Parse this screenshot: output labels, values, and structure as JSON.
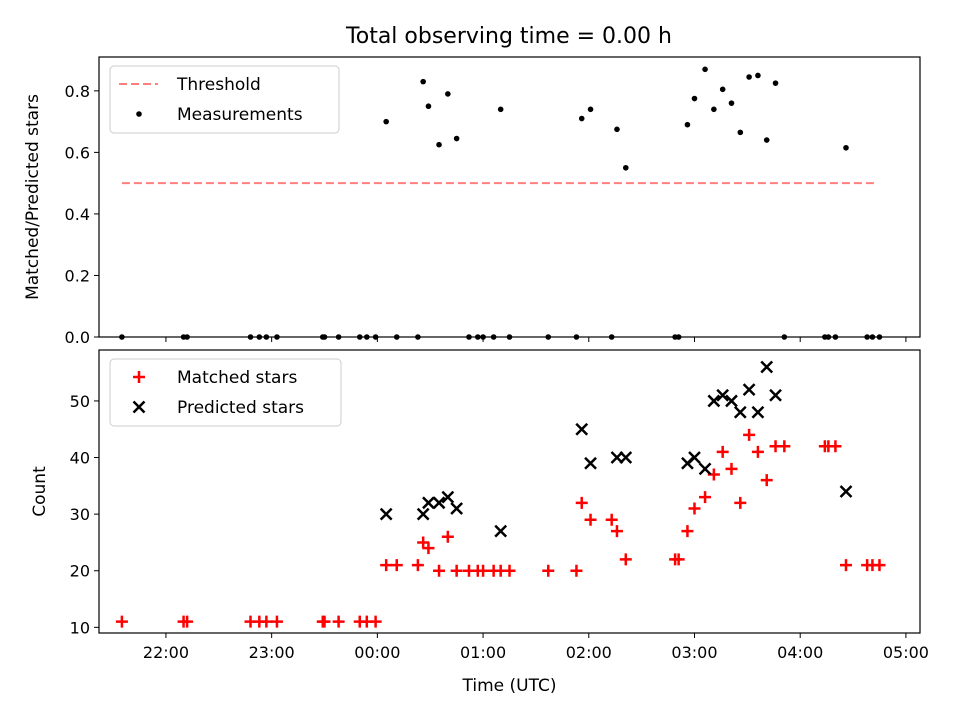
{
  "figure": {
    "title": "Total observing time = 0.00 h"
  },
  "colors": {
    "threshold": "#ff7f7f",
    "measurement": "#000000",
    "matched": "#ff0000",
    "predicted": "#000000"
  },
  "chart_data": [
    {
      "type": "scatter",
      "panel": "top",
      "title": "Total observing time = 0.00 h",
      "xlabel": "",
      "ylabel": "Matched/Predicted stars",
      "xlim": [
        "21:22",
        "05:08"
      ],
      "ylim": [
        0,
        0.91
      ],
      "yticks": [
        0.0,
        0.2,
        0.4,
        0.6,
        0.8
      ],
      "yticklabels": [
        "0.0",
        "0.2",
        "0.4",
        "0.6",
        "0.8"
      ],
      "grid": false,
      "legend": {
        "position": "top-left",
        "entries": [
          "Threshold",
          "Measurements"
        ]
      },
      "series": [
        {
          "name": "Threshold",
          "kind": "dashed-line",
          "x": [
            "21:35",
            "04:44"
          ],
          "y": [
            0.5,
            0.5
          ]
        },
        {
          "name": "Measurements",
          "kind": "dots",
          "points": [
            [
              "21:35",
              0
            ],
            [
              "22:10",
              0
            ],
            [
              "22:12",
              0
            ],
            [
              "22:48",
              0
            ],
            [
              "22:53",
              0
            ],
            [
              "22:57",
              0
            ],
            [
              "23:03",
              0
            ],
            [
              "23:29",
              0
            ],
            [
              "23:30",
              0
            ],
            [
              "23:38",
              0
            ],
            [
              "23:50",
              0
            ],
            [
              "23:54",
              0
            ],
            [
              "23:59",
              0
            ],
            [
              "00:05",
              0.7
            ],
            [
              "00:11",
              0
            ],
            [
              "00:23",
              0
            ],
            [
              "00:26",
              0.83
            ],
            [
              "00:29",
              0.75
            ],
            [
              "00:35",
              0.625
            ],
            [
              "00:40",
              0.79
            ],
            [
              "00:45",
              0.645
            ],
            [
              "00:52",
              0
            ],
            [
              "00:57",
              0
            ],
            [
              "01:00",
              0
            ],
            [
              "01:06",
              0
            ],
            [
              "01:10",
              0.74
            ],
            [
              "01:15",
              0
            ],
            [
              "01:37",
              0
            ],
            [
              "01:53",
              0
            ],
            [
              "01:56",
              0.71
            ],
            [
              "02:01",
              0.74
            ],
            [
              "02:13",
              0
            ],
            [
              "02:16",
              0.675
            ],
            [
              "02:21",
              0.55
            ],
            [
              "02:49",
              0
            ],
            [
              "02:51",
              0
            ],
            [
              "02:56",
              0.69
            ],
            [
              "03:00",
              0.775
            ],
            [
              "03:06",
              0.87
            ],
            [
              "03:11",
              0.74
            ],
            [
              "03:16",
              0.805
            ],
            [
              "03:21",
              0.76
            ],
            [
              "03:26",
              0.665
            ],
            [
              "03:31",
              0.845
            ],
            [
              "03:36",
              0.85
            ],
            [
              "03:41",
              0.64
            ],
            [
              "03:46",
              0.825
            ],
            [
              "03:51",
              0
            ],
            [
              "04:14",
              0
            ],
            [
              "04:16",
              0
            ],
            [
              "04:20",
              0
            ],
            [
              "04:26",
              0.615
            ],
            [
              "04:38",
              0
            ],
            [
              "04:41",
              0
            ],
            [
              "04:45",
              0
            ]
          ]
        }
      ]
    },
    {
      "type": "scatter",
      "panel": "bottom",
      "xlabel": "Time (UTC)",
      "ylabel": "Count",
      "xlim": [
        "21:22",
        "05:08"
      ],
      "ylim": [
        9,
        59
      ],
      "xticks": [
        "22:00",
        "23:00",
        "00:00",
        "01:00",
        "02:00",
        "03:00",
        "04:00",
        "05:00"
      ],
      "yticks": [
        10,
        20,
        30,
        40,
        50
      ],
      "grid": false,
      "legend": {
        "position": "top-left",
        "entries": [
          "Matched stars",
          "Predicted stars"
        ]
      },
      "series": [
        {
          "name": "Matched stars",
          "marker": "+",
          "points": [
            [
              "21:35",
              11
            ],
            [
              "22:10",
              11
            ],
            [
              "22:12",
              11
            ],
            [
              "22:48",
              11
            ],
            [
              "22:53",
              11
            ],
            [
              "22:57",
              11
            ],
            [
              "23:03",
              11
            ],
            [
              "23:29",
              11
            ],
            [
              "23:30",
              11
            ],
            [
              "23:38",
              11
            ],
            [
              "23:50",
              11
            ],
            [
              "23:54",
              11
            ],
            [
              "23:59",
              11
            ],
            [
              "00:05",
              21
            ],
            [
              "00:11",
              21
            ],
            [
              "00:23",
              21
            ],
            [
              "00:26",
              25
            ],
            [
              "00:29",
              24
            ],
            [
              "00:35",
              20
            ],
            [
              "00:40",
              26
            ],
            [
              "00:45",
              20
            ],
            [
              "00:52",
              20
            ],
            [
              "00:57",
              20
            ],
            [
              "01:00",
              20
            ],
            [
              "01:06",
              20
            ],
            [
              "01:10",
              20
            ],
            [
              "01:15",
              20
            ],
            [
              "01:37",
              20
            ],
            [
              "01:53",
              20
            ],
            [
              "01:56",
              32
            ],
            [
              "02:01",
              29
            ],
            [
              "02:13",
              29
            ],
            [
              "02:16",
              27
            ],
            [
              "02:21",
              22
            ],
            [
              "02:49",
              22
            ],
            [
              "02:51",
              22
            ],
            [
              "02:56",
              27
            ],
            [
              "03:00",
              31
            ],
            [
              "03:06",
              33
            ],
            [
              "03:11",
              37
            ],
            [
              "03:16",
              41
            ],
            [
              "03:21",
              38
            ],
            [
              "03:26",
              32
            ],
            [
              "03:31",
              44
            ],
            [
              "03:36",
              41
            ],
            [
              "03:41",
              36
            ],
            [
              "03:46",
              42
            ],
            [
              "03:51",
              42
            ],
            [
              "04:14",
              42
            ],
            [
              "04:16",
              42
            ],
            [
              "04:20",
              42
            ],
            [
              "04:26",
              21
            ],
            [
              "04:38",
              21
            ],
            [
              "04:41",
              21
            ],
            [
              "04:45",
              21
            ]
          ]
        },
        {
          "name": "Predicted stars",
          "marker": "x",
          "points": [
            [
              "00:05",
              30
            ],
            [
              "00:26",
              30
            ],
            [
              "00:29",
              32
            ],
            [
              "00:35",
              32
            ],
            [
              "00:40",
              33
            ],
            [
              "00:45",
              31
            ],
            [
              "01:10",
              27
            ],
            [
              "01:56",
              45
            ],
            [
              "02:01",
              39
            ],
            [
              "02:16",
              40
            ],
            [
              "02:21",
              40
            ],
            [
              "02:56",
              39
            ],
            [
              "03:00",
              40
            ],
            [
              "03:06",
              38
            ],
            [
              "03:11",
              50
            ],
            [
              "03:16",
              51
            ],
            [
              "03:21",
              50
            ],
            [
              "03:26",
              48
            ],
            [
              "03:31",
              52
            ],
            [
              "03:36",
              48
            ],
            [
              "03:41",
              56
            ],
            [
              "03:46",
              51
            ],
            [
              "04:26",
              34
            ]
          ]
        }
      ]
    }
  ]
}
